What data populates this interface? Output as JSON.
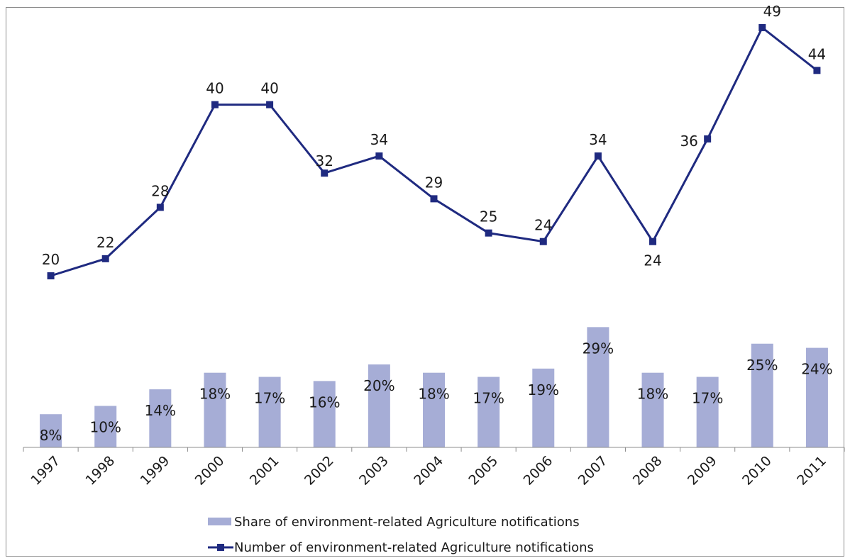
{
  "chart_data": {
    "type": "bar+line",
    "categories": [
      "1997",
      "1998",
      "1999",
      "2000",
      "2001",
      "2002",
      "2003",
      "2004",
      "2005",
      "2006",
      "2007",
      "2008",
      "2009",
      "2010",
      "2011"
    ],
    "series": [
      {
        "name": "Share of environment-related Agriculture notifications",
        "type": "bar",
        "axis": "secondary",
        "values": [
          8,
          10,
          14,
          18,
          17,
          16,
          20,
          18,
          17,
          19,
          29,
          18,
          17,
          25,
          24
        ],
        "labels": [
          "8%",
          "10%",
          "14%",
          "18%",
          "17%",
          "16%",
          "20%",
          "18%",
          "17%",
          "19%",
          "29%",
          "18%",
          "17%",
          "25%",
          "24%"
        ],
        "color": "#a6add6"
      },
      {
        "name": "Number of environment-related Agriculture notifications",
        "type": "line",
        "axis": "primary",
        "values": [
          20,
          22,
          28,
          40,
          40,
          32,
          34,
          29,
          25,
          24,
          34,
          24,
          36,
          49,
          44
        ],
        "labels": [
          "20",
          "22",
          "28",
          "40",
          "40",
          "32",
          "34",
          "29",
          "25",
          "24",
          "34",
          "24",
          "36",
          "49",
          "44"
        ],
        "color": "#1f2a80"
      }
    ],
    "legend_position": "bottom",
    "grid": false
  }
}
